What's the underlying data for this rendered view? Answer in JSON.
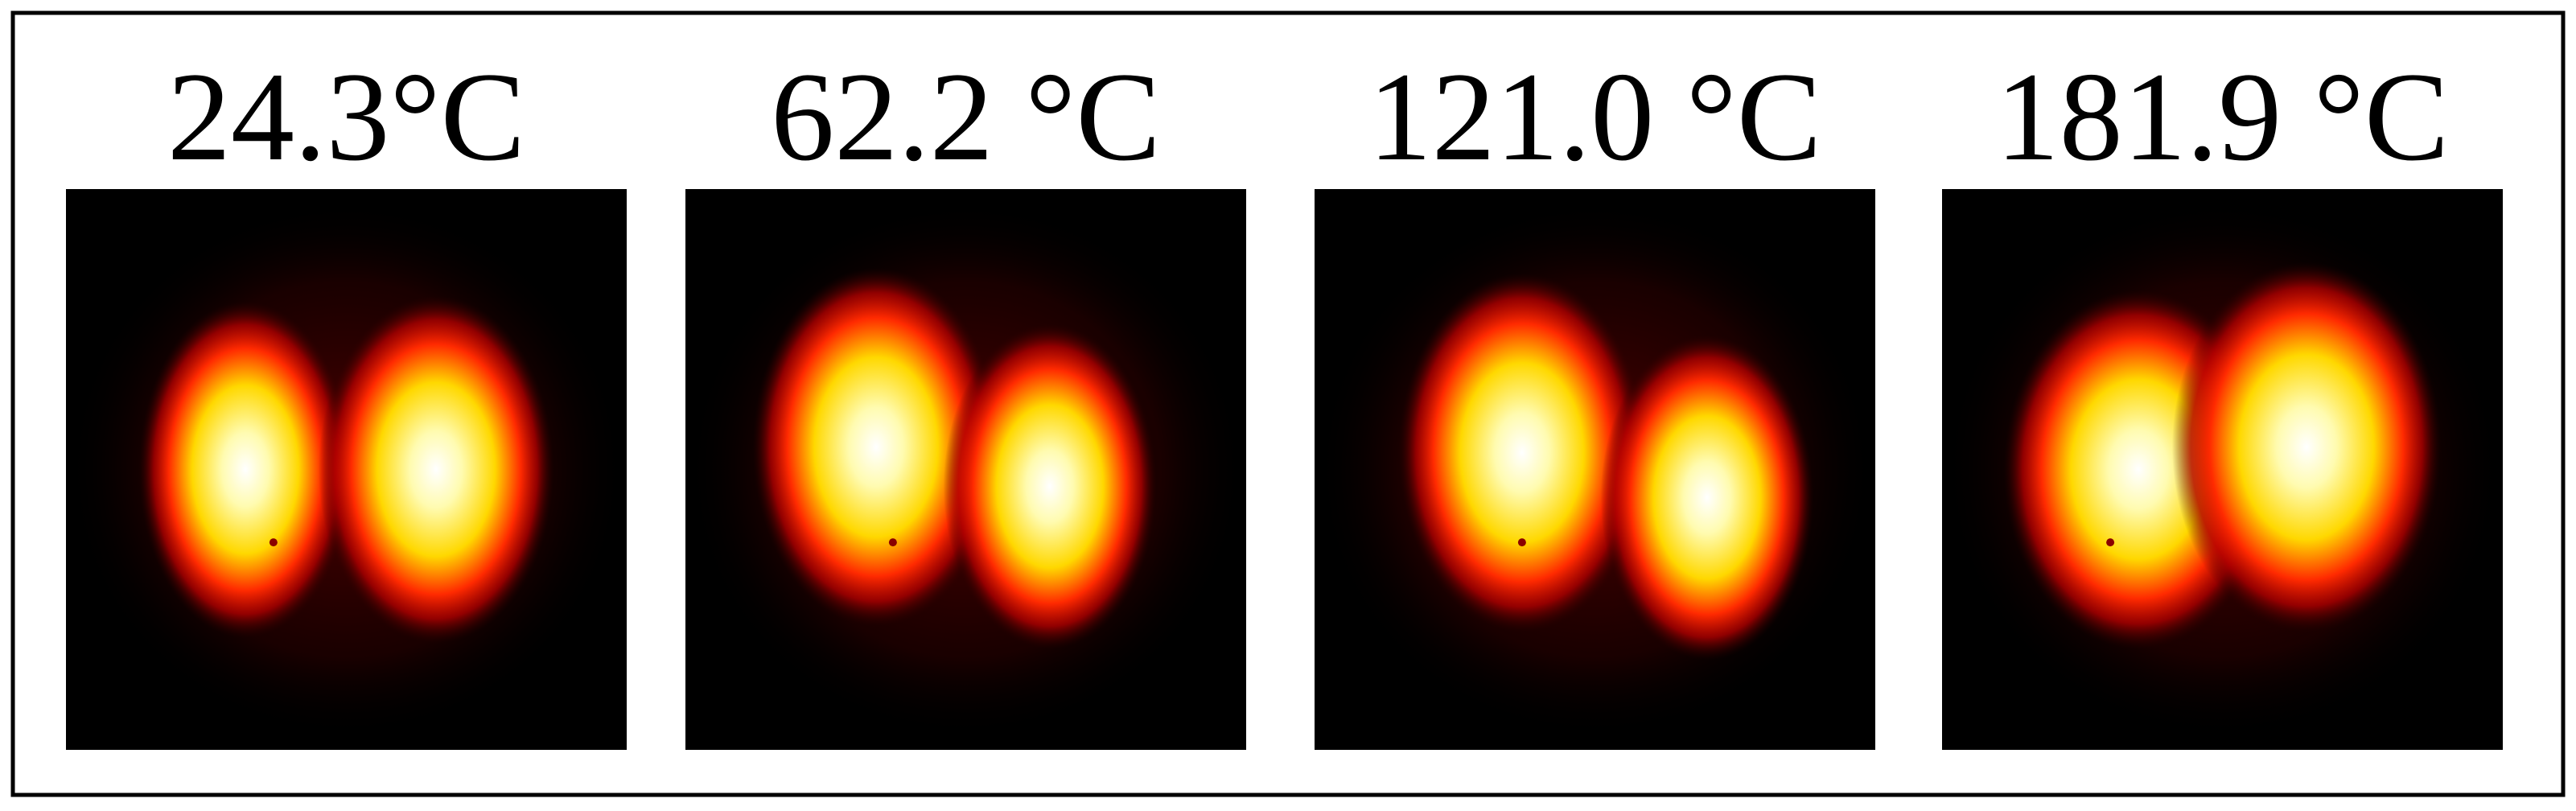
{
  "panels": [
    {
      "label": "24.3°C"
    },
    {
      "label": "62.2 °C"
    },
    {
      "label": "121.0 °C"
    },
    {
      "label": "181.9 °C"
    }
  ]
}
